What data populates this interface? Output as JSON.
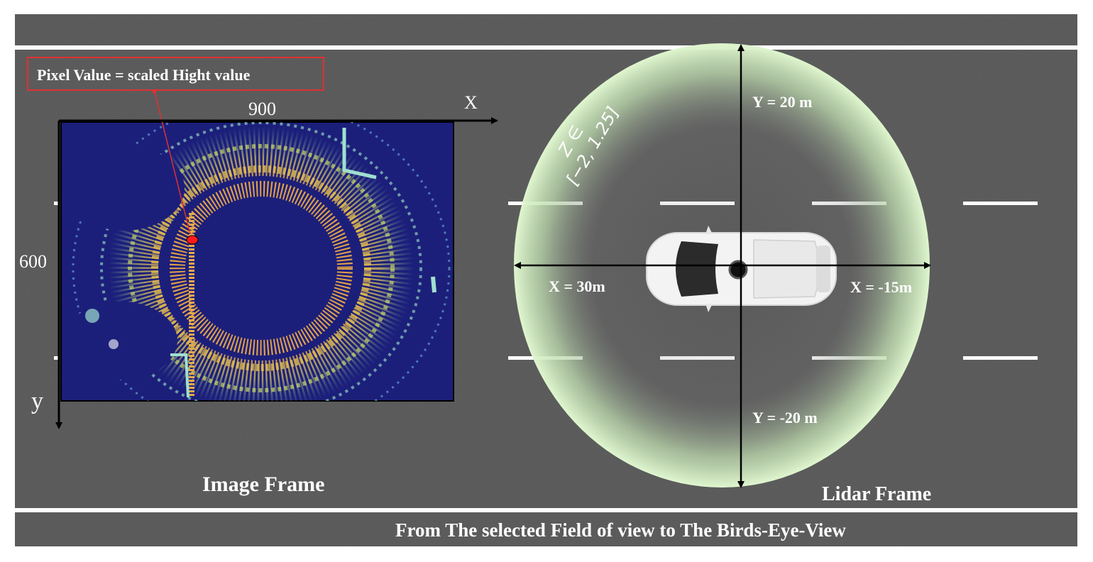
{
  "image_frame": {
    "callout": "Pixel Value  = scaled Hight value",
    "width_label": "900",
    "height_label": "600",
    "x_axis_label": "X",
    "y_axis_label": "y",
    "caption": "Image Frame"
  },
  "lidar_frame": {
    "y_top": "Y = 20 m",
    "y_bottom": "Y = -20 m",
    "x_left": "X = 30m",
    "x_right": "X = -15m",
    "z_range_line1": "Z ∈",
    "z_range_line2": "[−2, 1.25]",
    "caption": "Lidar Frame"
  },
  "footer": {
    "caption": "From  The selected Field of view  to The Birds-Eye-View"
  },
  "colors": {
    "road": "#5f5f5f",
    "lane_marking": "#ffffff",
    "fov_ring": "#d9f3c8",
    "bev_background": "#1c1f7a",
    "callout_border": "#e23030",
    "highlight_point": "#ff1a1a"
  }
}
